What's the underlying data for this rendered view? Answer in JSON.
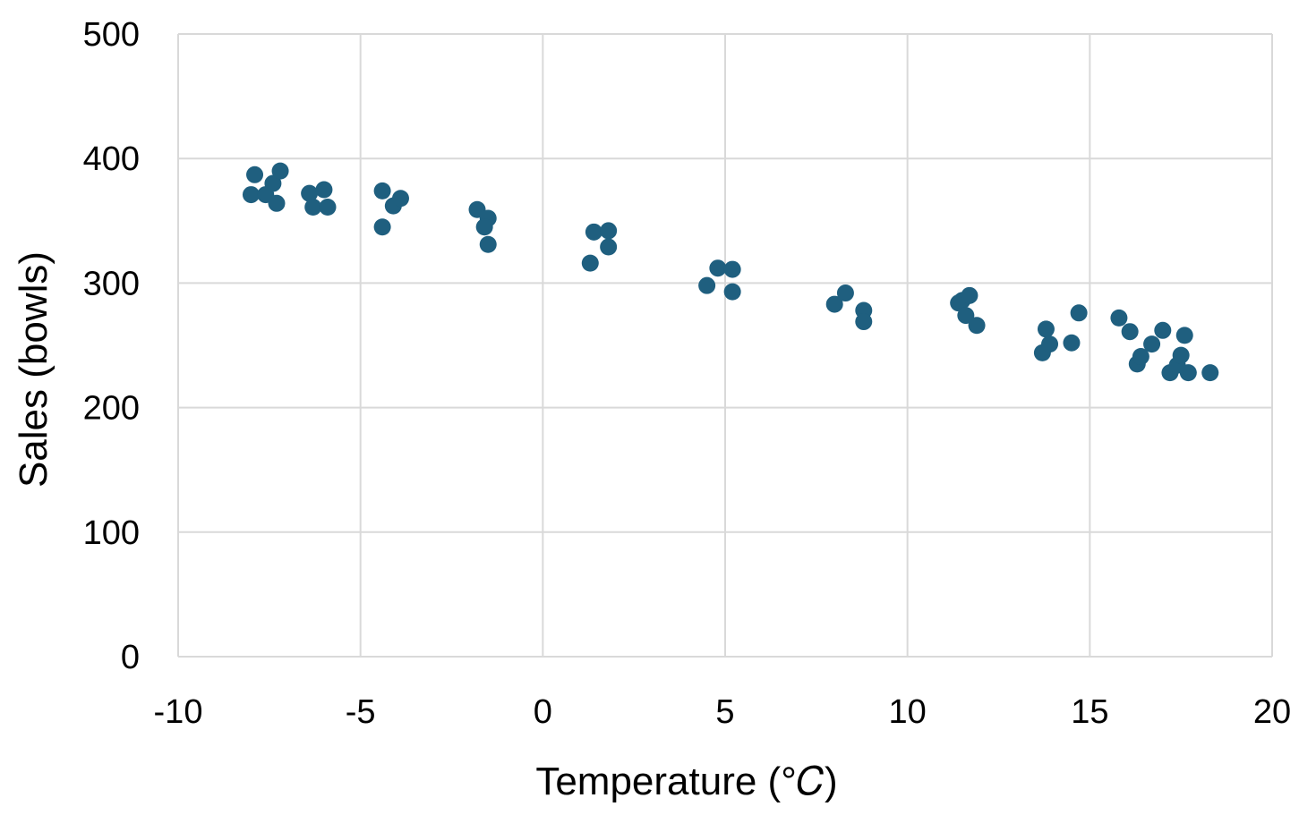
{
  "chart_data": {
    "type": "scatter",
    "title": "",
    "xlabel": "Temperature (°𝐶)",
    "ylabel": "Sales (bowls)",
    "xlim": [
      -10,
      20
    ],
    "ylim": [
      0,
      500
    ],
    "x_ticks": [
      -10,
      -5,
      0,
      5,
      10,
      15,
      20
    ],
    "y_ticks": [
      0,
      100,
      200,
      300,
      400,
      500
    ],
    "x_tick_labels": [
      "-10",
      "-5",
      "0",
      "5",
      "10",
      "15",
      "20"
    ],
    "y_tick_labels": [
      "0",
      "100",
      "200",
      "300",
      "400",
      "500"
    ],
    "grid": true,
    "legend": "none",
    "marker_color": "#1f5f7f",
    "grid_color": "#d9d9d9",
    "series": [
      {
        "points": [
          [
            -7.9,
            387
          ],
          [
            -8.0,
            371
          ],
          [
            -7.6,
            371
          ],
          [
            -7.4,
            380
          ],
          [
            -7.2,
            390
          ],
          [
            -7.3,
            364
          ],
          [
            -6.4,
            372
          ],
          [
            -6.3,
            361
          ],
          [
            -6.0,
            375
          ],
          [
            -5.9,
            361
          ],
          [
            -4.4,
            374
          ],
          [
            -4.4,
            345
          ],
          [
            -4.1,
            362
          ],
          [
            -3.9,
            368
          ],
          [
            -1.8,
            359
          ],
          [
            -1.5,
            352
          ],
          [
            -1.6,
            345
          ],
          [
            -1.5,
            331
          ],
          [
            1.3,
            316
          ],
          [
            1.4,
            341
          ],
          [
            1.8,
            342
          ],
          [
            1.8,
            329
          ],
          [
            4.5,
            298
          ],
          [
            4.8,
            312
          ],
          [
            5.2,
            311
          ],
          [
            5.2,
            293
          ],
          [
            8.0,
            283
          ],
          [
            8.3,
            292
          ],
          [
            8.8,
            278
          ],
          [
            8.8,
            269
          ],
          [
            11.4,
            284
          ],
          [
            11.5,
            286
          ],
          [
            11.7,
            290
          ],
          [
            11.6,
            274
          ],
          [
            11.9,
            266
          ],
          [
            13.7,
            244
          ],
          [
            13.8,
            263
          ],
          [
            13.9,
            251
          ],
          [
            14.5,
            252
          ],
          [
            14.7,
            276
          ],
          [
            15.8,
            272
          ],
          [
            16.1,
            261
          ],
          [
            16.3,
            235
          ],
          [
            16.4,
            241
          ],
          [
            16.7,
            251
          ],
          [
            17.0,
            262
          ],
          [
            17.2,
            228
          ],
          [
            17.4,
            234
          ],
          [
            17.5,
            242
          ],
          [
            17.6,
            258
          ],
          [
            17.7,
            228
          ],
          [
            18.3,
            228
          ]
        ]
      }
    ]
  }
}
